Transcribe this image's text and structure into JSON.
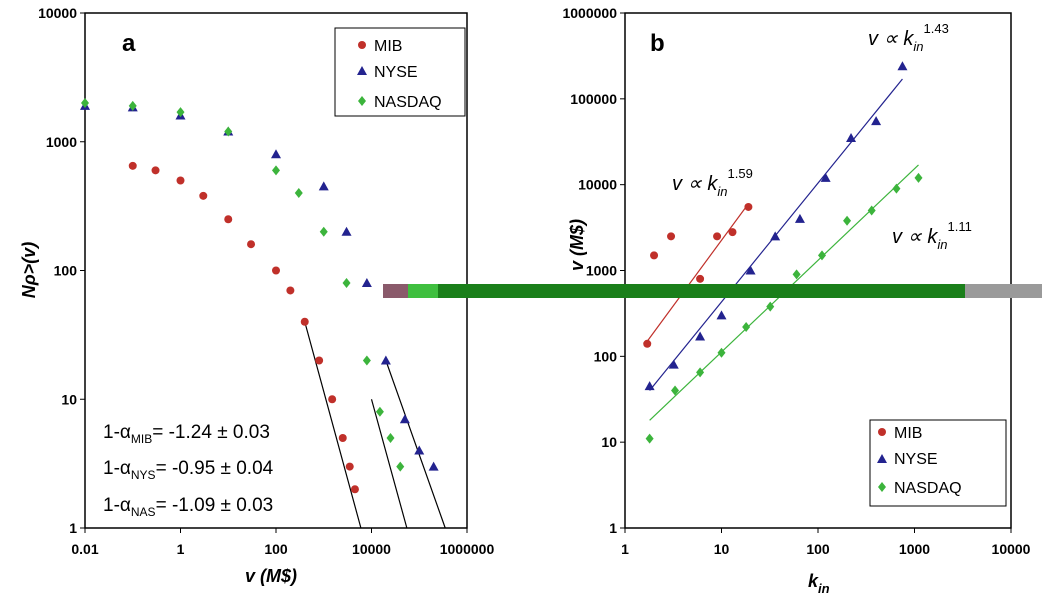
{
  "chart_data": [
    {
      "type": "scatter",
      "panel_label": "a",
      "xlabel": "v   (M$)",
      "ylabel": "Nρ>(v)",
      "xscale": "log",
      "yscale": "log",
      "xlim": [
        0.01,
        1000000
      ],
      "ylim": [
        1,
        10000
      ],
      "x_tick_labels": [
        "0.01",
        "1",
        "100",
        "10000",
        "1000000"
      ],
      "y_tick_labels": [
        "1",
        "10",
        "100",
        "1000",
        "10000"
      ],
      "legend_position": "top-right",
      "legend": [
        "MIB",
        "NYSE",
        "NASDAQ"
      ],
      "series": [
        {
          "name": "MIB",
          "color": "#c0302a",
          "marker": "circle",
          "x": [
            0.1,
            0.3,
            1,
            3,
            10,
            30,
            100,
            200,
            400,
            800,
            1500,
            2500,
            3500,
            4500
          ],
          "y": [
            650,
            600,
            500,
            380,
            250,
            160,
            100,
            70,
            40,
            20,
            10,
            5,
            3,
            2
          ],
          "fit": {
            "x": [
              400,
              6000
            ],
            "y": [
              40,
              1
            ]
          }
        },
        {
          "name": "NYSE",
          "color": "#23238f",
          "marker": "triangle",
          "x": [
            0.01,
            0.1,
            1,
            10,
            100,
            1000,
            3000,
            8000,
            20000,
            50000,
            100000,
            200000
          ],
          "y": [
            1900,
            1850,
            1600,
            1200,
            800,
            450,
            200,
            80,
            20,
            7,
            4,
            3
          ],
          "fit": {
            "x": [
              20000,
              350000
            ],
            "y": [
              20,
              1
            ]
          }
        },
        {
          "name": "NASDAQ",
          "color": "#3cb43c",
          "marker": "diamond",
          "x": [
            0.01,
            0.1,
            1,
            10,
            100,
            300,
            1000,
            3000,
            8000,
            15000,
            25000,
            40000
          ],
          "y": [
            2000,
            1900,
            1700,
            1200,
            600,
            400,
            200,
            80,
            20,
            8,
            5,
            3
          ],
          "fit": {
            "x": [
              10000,
              55000
            ],
            "y": [
              10,
              1
            ]
          }
        }
      ],
      "annotations": [
        {
          "prefix": "1-α",
          "sub": "MIB",
          "text": "= -1.24 ± 0.03"
        },
        {
          "prefix": "1-α",
          "sub": "NYS",
          "text": "= -0.95 ± 0.04"
        },
        {
          "prefix": "1-α",
          "sub": "NAS",
          "text": "= -1.09 ± 0.03"
        }
      ]
    },
    {
      "type": "scatter",
      "panel_label": "b",
      "xlabel": "k in",
      "ylabel": "v   (M$)",
      "xscale": "log",
      "yscale": "log",
      "xlim": [
        1,
        10000
      ],
      "ylim": [
        1,
        1000000
      ],
      "x_tick_labels": [
        "1",
        "10",
        "100",
        "1000",
        "10000"
      ],
      "y_tick_labels": [
        "1",
        "10",
        "100",
        "1000",
        "10000",
        "100000",
        "1000000"
      ],
      "legend_position": "bottom-right",
      "legend": [
        "MIB",
        "NYSE",
        "NASDAQ"
      ],
      "series": [
        {
          "name": "MIB",
          "color": "#c0302a",
          "marker": "circle",
          "x": [
            1.7,
            2,
            3,
            6,
            9,
            13,
            19
          ],
          "y": [
            140,
            1500,
            2500,
            800,
            2500,
            2800,
            5500
          ],
          "fit": {
            "x": [
              1.7,
              19
            ],
            "y": [
              150,
              6000
            ]
          }
        },
        {
          "name": "NYSE",
          "color": "#23238f",
          "marker": "triangle",
          "x": [
            1.8,
            3.2,
            6,
            10,
            20,
            36,
            65,
            120,
            220,
            400,
            750
          ],
          "y": [
            45,
            80,
            170,
            300,
            1000,
            2500,
            4000,
            12000,
            35000,
            55000,
            240000
          ],
          "fit": {
            "x": [
              1.8,
              750
            ],
            "y": [
              40,
              170000
            ]
          }
        },
        {
          "name": "NASDAQ",
          "color": "#3cb43c",
          "marker": "diamond",
          "x": [
            1.8,
            3.3,
            6,
            10,
            18,
            32,
            60,
            110,
            200,
            360,
            650,
            1100
          ],
          "y": [
            11,
            40,
            65,
            110,
            220,
            380,
            900,
            1500,
            3800,
            5000,
            9000,
            12000
          ],
          "fit": {
            "x": [
              1.8,
              1100
            ],
            "y": [
              18,
              17000
            ]
          }
        }
      ],
      "annotations": [
        {
          "base": "v ∝ k",
          "sub": "in",
          "exp": "1.59"
        },
        {
          "base": "v ∝ k",
          "sub": "in",
          "exp": "1.43"
        },
        {
          "base": "v ∝ k",
          "sub": "in",
          "exp": "1.11"
        }
      ]
    }
  ],
  "overlay_bar_colors": [
    "#8a5a6b",
    "#3fbf3f",
    "#1a7f1a",
    "#0f6b0f",
    "#9a9a9a"
  ]
}
